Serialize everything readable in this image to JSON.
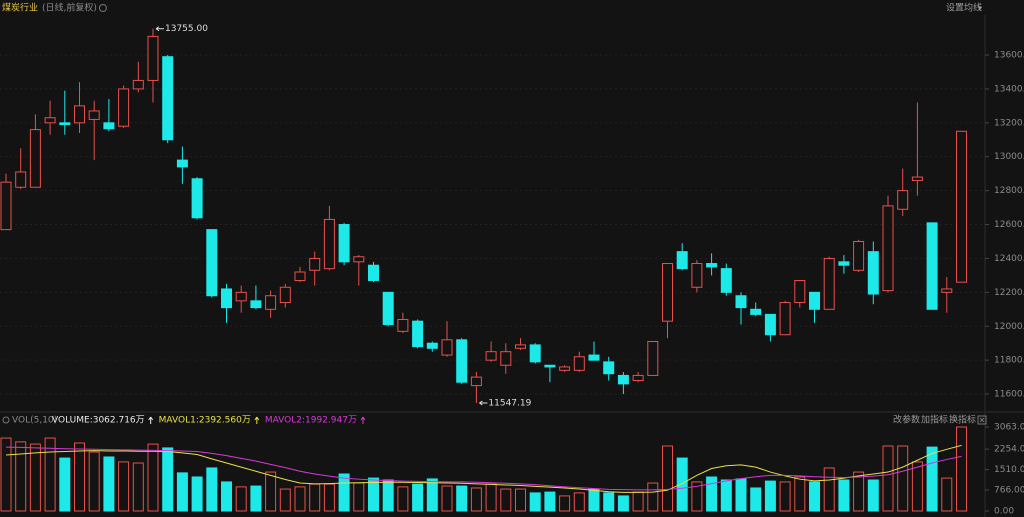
{
  "header": {
    "title": "煤炭行业",
    "subtitle": "(日线,前复权)",
    "ma_setting": "设置均线",
    "toolbar": [
      "改参数",
      "加指标",
      "换指标"
    ]
  },
  "chart_data": [
    {
      "type": "candlestick",
      "up_color": "#e8504c",
      "down_color": "#1de9e9",
      "grid": true,
      "ylim": [
        11506,
        13836
      ],
      "yticks": [
        {
          "value": 11600,
          "label": "11600.00"
        },
        {
          "value": 11800,
          "label": "11800.00"
        },
        {
          "value": 12000,
          "label": "12000.00"
        },
        {
          "value": 12200,
          "label": "12200.00"
        },
        {
          "value": 12400,
          "label": "12400.00"
        },
        {
          "value": 12600,
          "label": "12600.00"
        },
        {
          "value": 12800,
          "label": "12800.00"
        },
        {
          "value": 13000,
          "label": "13000.00"
        },
        {
          "value": 13200,
          "label": "13200.00"
        },
        {
          "value": 13400,
          "label": "13400.00"
        },
        {
          "value": 13600,
          "label": "13600.00"
        }
      ],
      "high_label": {
        "value": 13755,
        "label": "13755.00"
      },
      "low_label": {
        "value": 11547.19,
        "label": "11547.19"
      },
      "open": [
        12570,
        12820,
        12820,
        13200,
        13200,
        13200,
        13220,
        13200,
        13180,
        13400,
        13450,
        13590,
        12980,
        12870,
        12570,
        12220,
        12150,
        12150,
        12100,
        12140,
        12270,
        12330,
        12340,
        12600,
        12380,
        12360,
        12200,
        11970,
        12030,
        11900,
        11830,
        11920,
        11650,
        11800,
        11770,
        11870,
        11890,
        11770,
        11740,
        11740,
        11830,
        11790,
        11710,
        11680,
        11710,
        12030,
        12440,
        12230,
        12370,
        12340,
        12180,
        12100,
        12070,
        11950,
        12140,
        12200,
        12100,
        12380,
        12330,
        12440,
        12210,
        12690,
        12860,
        12610,
        12200,
        12260
      ],
      "high": [
        12900,
        13050,
        13250,
        13330,
        13390,
        13440,
        13330,
        13340,
        13420,
        13560,
        13755,
        13600,
        13060,
        12880,
        12570,
        12250,
        12240,
        12240,
        12210,
        12250,
        12350,
        12440,
        12710,
        12610,
        12420,
        12380,
        12200,
        12080,
        12040,
        11910,
        12030,
        11930,
        11730,
        11910,
        11900,
        11930,
        11900,
        11770,
        11770,
        11850,
        11910,
        11820,
        11730,
        11730,
        11910,
        12370,
        12490,
        12390,
        12430,
        12370,
        12200,
        12140,
        12070,
        12150,
        12270,
        12200,
        12410,
        12420,
        12510,
        12500,
        12770,
        12930,
        13320,
        12610,
        12290,
        13150
      ],
      "low": [
        12570,
        12810,
        12820,
        13130,
        13130,
        13140,
        12980,
        13150,
        13170,
        13380,
        13320,
        13080,
        12840,
        12630,
        12170,
        12020,
        12080,
        12100,
        12050,
        12110,
        12260,
        12240,
        12330,
        12360,
        12240,
        12260,
        12000,
        11960,
        11870,
        11850,
        11820,
        11660,
        11547.19,
        11790,
        11720,
        11860,
        11780,
        11670,
        11730,
        11730,
        11800,
        11680,
        11600,
        11670,
        11710,
        11930,
        12330,
        12200,
        12300,
        12180,
        12010,
        12060,
        11910,
        11950,
        12110,
        12020,
        12100,
        12310,
        12320,
        12130,
        12200,
        12650,
        12770,
        12100,
        12080,
        12260
      ],
      "close": [
        12850,
        12910,
        13160,
        13230,
        13190,
        13300,
        13270,
        13165,
        13400,
        13450,
        13710,
        13100,
        12940,
        12640,
        12180,
        12110,
        12200,
        12110,
        12180,
        12230,
        12320,
        12400,
        12630,
        12380,
        12410,
        12270,
        12010,
        12040,
        11880,
        11870,
        11920,
        11670,
        11700,
        11850,
        11850,
        11890,
        11790,
        11760,
        11760,
        11820,
        11800,
        11720,
        11660,
        11710,
        11910,
        12370,
        12340,
        12370,
        12350,
        12200,
        12110,
        12070,
        11950,
        12140,
        12270,
        12100,
        12400,
        12360,
        12500,
        12190,
        12710,
        12800,
        12880,
        12100,
        12220,
        13150
      ]
    },
    {
      "type": "bar",
      "title": "VOL(5,10)",
      "ylim": [
        0,
        3063
      ],
      "yticks": [
        {
          "value": 0,
          "label": "0.00"
        },
        {
          "value": 766,
          "label": "766.00"
        },
        {
          "value": 1510,
          "label": "1510.00"
        },
        {
          "value": 2254,
          "label": "2254.00"
        },
        {
          "value": 3063,
          "label": "3063.00"
        }
      ],
      "series": [
        {
          "name": "VOLUME:3062.716万",
          "color": "#e8e8e8",
          "values": [
            2660,
            2520,
            2440,
            2660,
            1930,
            2480,
            2150,
            1970,
            1790,
            1750,
            2440,
            2300,
            1390,
            1240,
            1570,
            1060,
            880,
            910,
            1420,
            800,
            880,
            980,
            980,
            1350,
            1020,
            1200,
            1130,
            880,
            980,
            1170,
            910,
            910,
            840,
            980,
            800,
            800,
            660,
            690,
            550,
            660,
            800,
            660,
            550,
            690,
            1020,
            2370,
            1930,
            1060,
            1240,
            1130,
            1170,
            840,
            1090,
            1060,
            1240,
            1060,
            1570,
            1130,
            1420,
            1130,
            2370,
            2370,
            1790,
            2330,
            1200,
            3062.716
          ]
        },
        {
          "name": "MAVOL1:2392.560万",
          "color": "#e8e04a",
          "values": [
            2040,
            2080,
            2120,
            2150,
            2170,
            2190,
            2200,
            2190,
            2190,
            2180,
            2180,
            2170,
            2120,
            2060,
            1900,
            1750,
            1600,
            1450,
            1300,
            1150,
            1020,
            990,
            1000,
            1020,
            1030,
            1040,
            1050,
            1050,
            1040,
            1030,
            1020,
            1010,
            990,
            970,
            950,
            930,
            900,
            870,
            840,
            800,
            750,
            700,
            680,
            680,
            690,
            760,
            1000,
            1300,
            1550,
            1650,
            1680,
            1600,
            1420,
            1280,
            1160,
            1100,
            1130,
            1200,
            1280,
            1350,
            1420,
            1600,
            1850,
            2100,
            2250,
            2392.56
          ]
        },
        {
          "name": "MAVOL2:1992.947万",
          "color": "#d63ad6",
          "values": [
            2330,
            2320,
            2300,
            2290,
            2270,
            2260,
            2250,
            2240,
            2230,
            2220,
            2210,
            2200,
            2190,
            2170,
            2100,
            2020,
            1920,
            1820,
            1700,
            1580,
            1450,
            1350,
            1270,
            1200,
            1160,
            1130,
            1110,
            1090,
            1080,
            1070,
            1060,
            1060,
            1050,
            1030,
            1010,
            990,
            960,
            920,
            880,
            850,
            820,
            790,
            780,
            770,
            770,
            790,
            830,
            900,
            1000,
            1100,
            1180,
            1250,
            1300,
            1300,
            1280,
            1250,
            1230,
            1220,
            1240,
            1270,
            1320,
            1450,
            1600,
            1750,
            1880,
            1992.947
          ]
        }
      ]
    }
  ]
}
